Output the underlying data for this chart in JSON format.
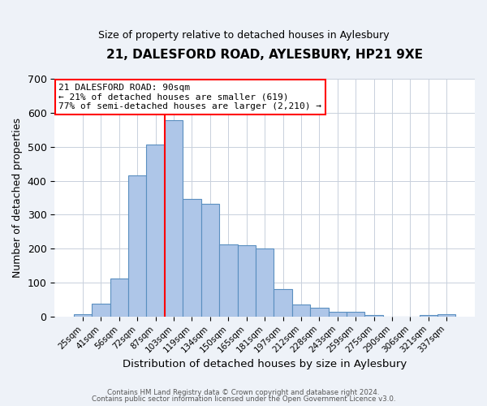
{
  "title1": "21, DALESFORD ROAD, AYLESBURY, HP21 9XE",
  "title2": "Size of property relative to detached houses in Aylesbury",
  "xlabel": "Distribution of detached houses by size in Aylesbury",
  "ylabel": "Number of detached properties",
  "bar_labels": [
    "25sqm",
    "41sqm",
    "56sqm",
    "72sqm",
    "87sqm",
    "103sqm",
    "119sqm",
    "134sqm",
    "150sqm",
    "165sqm",
    "181sqm",
    "197sqm",
    "212sqm",
    "228sqm",
    "243sqm",
    "259sqm",
    "275sqm",
    "290sqm",
    "306sqm",
    "321sqm",
    "337sqm"
  ],
  "bar_values": [
    8,
    37,
    113,
    415,
    507,
    577,
    347,
    333,
    212,
    210,
    200,
    80,
    35,
    25,
    13,
    13,
    5,
    0,
    0,
    5,
    8
  ],
  "bar_color": "#aec6e8",
  "bar_edge_color": "#5a8fc0",
  "ylim": [
    0,
    700
  ],
  "yticks": [
    0,
    100,
    200,
    300,
    400,
    500,
    600,
    700
  ],
  "red_line_x": 4.5,
  "annotation_title": "21 DALESFORD ROAD: 90sqm",
  "annotation_line1": "← 21% of detached houses are smaller (619)",
  "annotation_line2": "77% of semi-detached houses are larger (2,210) →",
  "footer1": "Contains HM Land Registry data © Crown copyright and database right 2024.",
  "footer2": "Contains public sector information licensed under the Open Government Licence v3.0.",
  "bg_color": "#eef2f8",
  "plot_bg_color": "#ffffff",
  "grid_color": "#c8d0dc"
}
